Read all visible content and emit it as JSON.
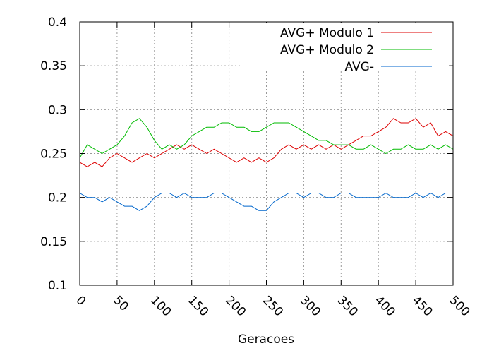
{
  "chart_data": {
    "type": "line",
    "title": "",
    "xlabel": "Geracoes",
    "ylabel": "",
    "xlim": [
      0,
      500
    ],
    "ylim": [
      0.1,
      0.4
    ],
    "xticks": [
      0,
      50,
      100,
      150,
      200,
      250,
      300,
      350,
      400,
      450,
      500
    ],
    "xtick_labels": [
      "0",
      "50",
      "100",
      "150",
      "200",
      "250",
      "300",
      "350",
      "400",
      "450",
      "500"
    ],
    "yticks": [
      0.1,
      0.15,
      0.2,
      0.25,
      0.3,
      0.35,
      0.4
    ],
    "ytick_labels": [
      "0.1",
      "0.15",
      "0.2",
      "0.25",
      "0.3",
      "0.35",
      "0.4"
    ],
    "grid": true,
    "legend_position": "top-right",
    "series": [
      {
        "name": "AVG+ Modulo 1",
        "color": "#dd0000",
        "x": [
          0,
          10,
          20,
          30,
          40,
          50,
          60,
          70,
          80,
          90,
          100,
          110,
          120,
          130,
          140,
          150,
          160,
          170,
          180,
          190,
          200,
          210,
          220,
          230,
          240,
          250,
          260,
          270,
          280,
          290,
          300,
          310,
          320,
          330,
          340,
          350,
          360,
          370,
          380,
          390,
          400,
          410,
          420,
          430,
          440,
          450,
          460,
          470,
          480,
          490,
          500
        ],
        "y": [
          0.24,
          0.235,
          0.24,
          0.235,
          0.245,
          0.25,
          0.245,
          0.24,
          0.245,
          0.25,
          0.245,
          0.25,
          0.255,
          0.26,
          0.255,
          0.26,
          0.255,
          0.25,
          0.255,
          0.25,
          0.245,
          0.24,
          0.245,
          0.24,
          0.245,
          0.24,
          0.245,
          0.255,
          0.26,
          0.255,
          0.26,
          0.255,
          0.26,
          0.255,
          0.26,
          0.255,
          0.26,
          0.265,
          0.27,
          0.27,
          0.275,
          0.28,
          0.29,
          0.285,
          0.285,
          0.29,
          0.28,
          0.285,
          0.27,
          0.275,
          0.27
        ]
      },
      {
        "name": "AVG+ Modulo 2",
        "color": "#00bb00",
        "x": [
          0,
          10,
          20,
          30,
          40,
          50,
          60,
          70,
          80,
          90,
          100,
          110,
          120,
          130,
          140,
          150,
          160,
          170,
          180,
          190,
          200,
          210,
          220,
          230,
          240,
          250,
          260,
          270,
          280,
          290,
          300,
          310,
          320,
          330,
          340,
          350,
          360,
          370,
          380,
          390,
          400,
          410,
          420,
          430,
          440,
          450,
          460,
          470,
          480,
          490,
          500
        ],
        "y": [
          0.245,
          0.26,
          0.255,
          0.25,
          0.255,
          0.26,
          0.27,
          0.285,
          0.29,
          0.28,
          0.265,
          0.255,
          0.26,
          0.255,
          0.26,
          0.27,
          0.275,
          0.28,
          0.28,
          0.285,
          0.285,
          0.28,
          0.28,
          0.275,
          0.275,
          0.28,
          0.285,
          0.285,
          0.285,
          0.28,
          0.275,
          0.27,
          0.265,
          0.265,
          0.26,
          0.26,
          0.26,
          0.255,
          0.255,
          0.26,
          0.255,
          0.25,
          0.255,
          0.255,
          0.26,
          0.255,
          0.255,
          0.26,
          0.255,
          0.26,
          0.255
        ]
      },
      {
        "name": "AVG-",
        "color": "#0066cc",
        "x": [
          0,
          10,
          20,
          30,
          40,
          50,
          60,
          70,
          80,
          90,
          100,
          110,
          120,
          130,
          140,
          150,
          160,
          170,
          180,
          190,
          200,
          210,
          220,
          230,
          240,
          250,
          260,
          270,
          280,
          290,
          300,
          310,
          320,
          330,
          340,
          350,
          360,
          370,
          380,
          390,
          400,
          410,
          420,
          430,
          440,
          450,
          460,
          470,
          480,
          490,
          500
        ],
        "y": [
          0.205,
          0.2,
          0.2,
          0.195,
          0.2,
          0.195,
          0.19,
          0.19,
          0.185,
          0.19,
          0.2,
          0.205,
          0.205,
          0.2,
          0.205,
          0.2,
          0.2,
          0.2,
          0.205,
          0.205,
          0.2,
          0.195,
          0.19,
          0.19,
          0.185,
          0.185,
          0.195,
          0.2,
          0.205,
          0.205,
          0.2,
          0.205,
          0.205,
          0.2,
          0.2,
          0.205,
          0.205,
          0.2,
          0.2,
          0.2,
          0.2,
          0.205,
          0.2,
          0.2,
          0.2,
          0.205,
          0.2,
          0.205,
          0.2,
          0.205,
          0.205
        ]
      }
    ]
  }
}
